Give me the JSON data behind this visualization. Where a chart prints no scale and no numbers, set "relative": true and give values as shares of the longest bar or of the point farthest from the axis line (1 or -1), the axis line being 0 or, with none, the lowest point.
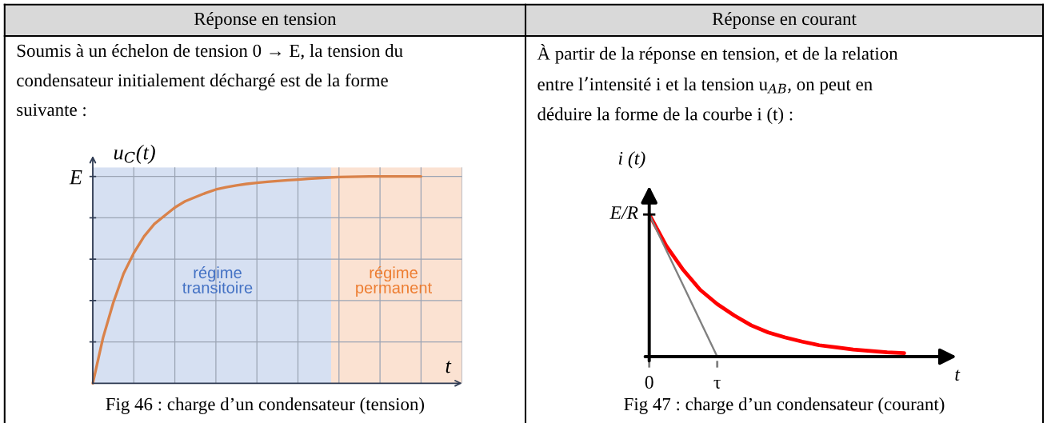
{
  "chart_data": [
    {
      "type": "line",
      "title": "Réponse en tension",
      "subtitle": "Soumis à un échelon de tension 0 → E, la tension du\ncondensateur initialement déchargé est de la forme\nsuivante :",
      "ylabel": "u$_{C}$(t)",
      "xlabel": "t",
      "relative": true,
      "categories": [
        null,
        null,
        null,
        null,
        null,
        null,
        null,
        null,
        null,
        null,
        null,
        null,
        null,
        null,
        null,
        null,
        null,
        null,
        null,
        null,
        null,
        null,
        null,
        null,
        null,
        null,
        null,
        null,
        null,
        null,
        null,
        null,
        null,
        null,
        null,
        null,
        null
      ],
      "series": [
        {
          "color": "#d9824a",
          "values": [
            0,
            0.22,
            0.39,
            0.53,
            0.63,
            0.71,
            0.77,
            0.81,
            0.85,
            0.88,
            0.9,
            0.92,
            0.937,
            0.948,
            0.957,
            0.964,
            0.969,
            0.974,
            0.978,
            0.982,
            0.985,
            0.989,
            0.992,
            0.995,
            0.997,
            0.998,
            0.999,
            1,
            1,
            1,
            1,
            1,
            1,
            null,
            null,
            null,
            null
          ]
        }
      ],
      "grid": true,
      "tick_labels": false,
      "line_style": "solid",
      "marker": "none",
      "annotations": [
        "E",
        "régime\ntransitoire",
        "régime\npermanent",
        "Fig 46 : charge d’un condensateur (tension)"
      ]
    },
    {
      "type": "line",
      "title": "Réponse en courant",
      "subtitle": "À partir de la réponse en tension, et de la relation\nentre l’intensité i et la tension u$_{AB}$, on peut en\ndéduire la forme de la courbe i (t) :",
      "ylabel": "i (t)",
      "xlabel": "t",
      "relative": true,
      "categories": [
        "0",
        null,
        null,
        null,
        "τ",
        null,
        null,
        null,
        null,
        null,
        null,
        null,
        null,
        null,
        null,
        null,
        null,
        null,
        null
      ],
      "series": [
        {
          "color": "#ff0000",
          "values": [
            1,
            0.78,
            0.61,
            0.47,
            0.37,
            0.29,
            0.22,
            0.17,
            0.135,
            0.105,
            0.08,
            0.065,
            0.05,
            0.04,
            0.03,
            0.024,
            null,
            null,
            null
          ]
        },
        {
          "type": "line",
          "color": "#808080",
          "values": [
            1,
            0.75,
            0.5,
            0.25,
            0,
            null,
            null,
            null,
            null,
            null,
            null,
            null,
            null,
            null,
            null,
            null,
            null,
            null,
            null
          ]
        }
      ],
      "tick_labels": "x",
      "line_style": "solid",
      "marker": "none",
      "annotations": [
        "E/R",
        "Fig 47 : charge d’un condensateur (courant)"
      ]
    }
  ]
}
